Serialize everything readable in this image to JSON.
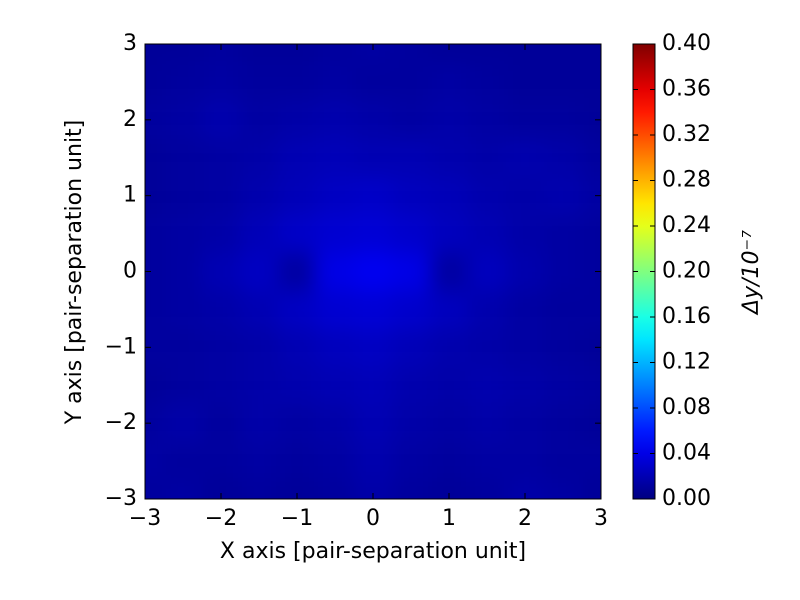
{
  "chart_data": {
    "type": "heatmap",
    "xlabel": "X axis [pair-separation unit]",
    "ylabel": "Y axis [pair-separation unit]",
    "colorbar_label": "Δy/10⁻⁷",
    "colormap": "jet",
    "clim": [
      0,
      0.4
    ],
    "xlim": [
      -3,
      3
    ],
    "ylim": [
      -3,
      3
    ],
    "xticks": [
      {
        "value": -3,
        "label": "−3"
      },
      {
        "value": -2,
        "label": "−2"
      },
      {
        "value": -1,
        "label": "−1"
      },
      0,
      1,
      2,
      3
    ],
    "yticks": [
      {
        "value": -3,
        "label": "−3"
      },
      {
        "value": -2,
        "label": "−2"
      },
      {
        "value": -1,
        "label": "−1"
      },
      0,
      1,
      2,
      3
    ],
    "cticks": [
      {
        "value": 0,
        "label": "0.00"
      },
      {
        "value": 0.04,
        "label": "0.04"
      },
      {
        "value": 0.08,
        "label": "0.08"
      },
      {
        "value": 0.12,
        "label": "0.12"
      },
      {
        "value": 0.16,
        "label": "0.16"
      },
      {
        "value": 0.2,
        "label": "0.20"
      },
      {
        "value": 0.24,
        "label": "0.24"
      },
      {
        "value": 0.28,
        "label": "0.28"
      },
      {
        "value": 0.32,
        "label": "0.32"
      },
      {
        "value": 0.36,
        "label": "0.36"
      },
      {
        "value": 0.4,
        "label": "0.40"
      }
    ],
    "x": [
      -3,
      -2.5,
      -2,
      -1.5,
      -1,
      -0.5,
      0,
      0.5,
      1,
      1.5,
      2,
      2.5,
      3
    ],
    "y": [
      -3,
      -2.5,
      -2,
      -1.5,
      -1,
      -0.5,
      0,
      0.5,
      1,
      1.5,
      2,
      2.5,
      3
    ],
    "z": [
      [
        0.012,
        0.014,
        0.01,
        0.012,
        0.01,
        0.012,
        0.016,
        0.012,
        0.01,
        0.012,
        0.016,
        0.014,
        0.01
      ],
      [
        0.014,
        0.012,
        0.012,
        0.014,
        0.012,
        0.014,
        0.018,
        0.014,
        0.012,
        0.014,
        0.014,
        0.012,
        0.012
      ],
      [
        0.012,
        0.016,
        0.012,
        0.016,
        0.014,
        0.016,
        0.02,
        0.016,
        0.014,
        0.016,
        0.014,
        0.012,
        0.01
      ],
      [
        0.01,
        0.012,
        0.014,
        0.016,
        0.018,
        0.02,
        0.022,
        0.018,
        0.016,
        0.018,
        0.016,
        0.014,
        0.012
      ],
      [
        0.012,
        0.012,
        0.014,
        0.016,
        0.02,
        0.024,
        0.026,
        0.022,
        0.018,
        0.016,
        0.014,
        0.012,
        0.01
      ],
      [
        0.012,
        0.014,
        0.016,
        0.02,
        0.026,
        0.032,
        0.034,
        0.03,
        0.024,
        0.018,
        0.014,
        0.012,
        0.012
      ],
      [
        0.012,
        0.014,
        0.02,
        0.026,
        0.014,
        0.04,
        0.044,
        0.04,
        0.014,
        0.024,
        0.018,
        0.014,
        0.012
      ],
      [
        0.012,
        0.014,
        0.016,
        0.022,
        0.028,
        0.032,
        0.034,
        0.03,
        0.024,
        0.02,
        0.016,
        0.014,
        0.012
      ],
      [
        0.01,
        0.012,
        0.014,
        0.018,
        0.022,
        0.026,
        0.028,
        0.024,
        0.022,
        0.018,
        0.016,
        0.018,
        0.014
      ],
      [
        0.01,
        0.012,
        0.014,
        0.016,
        0.02,
        0.022,
        0.02,
        0.02,
        0.018,
        0.016,
        0.018,
        0.016,
        0.012
      ],
      [
        0.012,
        0.014,
        0.018,
        0.014,
        0.016,
        0.018,
        0.016,
        0.014,
        0.016,
        0.014,
        0.012,
        0.012,
        0.01
      ],
      [
        0.01,
        0.012,
        0.014,
        0.012,
        0.012,
        0.014,
        0.012,
        0.012,
        0.014,
        0.012,
        0.01,
        0.01,
        0.01
      ],
      [
        0.01,
        0.01,
        0.012,
        0.01,
        0.01,
        0.012,
        0.014,
        0.012,
        0.01,
        0.01,
        0.01,
        0.01,
        0.01
      ]
    ]
  }
}
